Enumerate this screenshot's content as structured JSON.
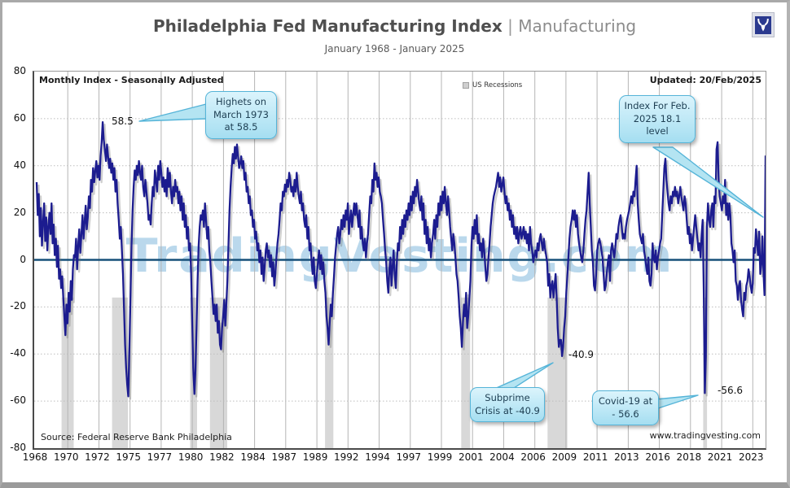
{
  "header": {
    "title": "Philadelphia Fed Manufacturing Index",
    "separator": "|",
    "subtitle_inline": "Manufacturing",
    "date_range": "January 1968 - January 2025"
  },
  "plot_notes": {
    "corner_note": "Monthly Index  - Seasonally Adjusted",
    "updated": "Updated: 20/Feb/2025",
    "legend_label": "US Recessions",
    "source": "Source: Federal Reserve Bank Philadelphia",
    "website": "www.tradingvesting.com",
    "watermark": "TradingVesting.com"
  },
  "icons": {
    "logo": "tradingvesting-bull-logo"
  },
  "chart_data": {
    "type": "line",
    "title": "Philadelphia Fed Manufacturing Index | Manufacturing",
    "subtitle": "January 1968 - January 2025",
    "xlabel": "",
    "ylabel": "",
    "ylim": [
      -80,
      80
    ],
    "y_ticks": [
      80,
      60,
      40,
      20,
      0,
      -20,
      -40,
      -60,
      -80
    ],
    "x_domain": [
      1968.0,
      2025.0
    ],
    "x_tick_labels": [
      "1968",
      "1970",
      "1972",
      "1975",
      "1977",
      "1980",
      "1982",
      "1984",
      "1987",
      "1989",
      "1992",
      "1994",
      "1997",
      "1999",
      "2001",
      "2004",
      "2006",
      "2009",
      "2011",
      "2013",
      "2016",
      "2018",
      "2021",
      "2023"
    ],
    "grid": true,
    "legend_position": "top-center",
    "series": [
      {
        "name": "Philadelphia Fed Manufacturing Index",
        "start": "1968-01",
        "frequency": "monthly",
        "values": [
          33,
          19,
          28,
          10,
          22,
          6,
          16,
          24,
          8,
          18,
          4,
          14,
          20,
          11,
          24,
          7,
          15,
          2,
          9,
          -3,
          6,
          -8,
          -4,
          -12,
          -7,
          -16,
          -24,
          -32,
          -19,
          -27,
          -14,
          -22,
          -9,
          -17,
          -4,
          2,
          1,
          9,
          -4,
          6,
          13,
          3,
          11,
          19,
          9,
          16,
          23,
          13,
          18,
          27,
          22,
          34,
          29,
          39,
          33,
          38,
          42,
          35,
          40,
          34,
          44,
          50,
          58.5,
          51,
          47,
          42,
          49,
          44,
          39,
          43,
          37,
          41,
          34,
          39,
          29,
          34,
          24,
          17,
          9,
          14,
          4,
          -6,
          -21,
          -36,
          -46,
          -53,
          -58,
          -39,
          -18,
          6,
          21,
          31,
          38,
          34,
          40,
          36,
          42,
          37,
          34,
          40,
          31,
          27,
          34,
          29,
          24,
          17,
          19,
          15,
          24,
          31,
          27,
          38,
          34,
          29,
          40,
          34,
          42,
          37,
          31,
          35,
          29,
          34,
          27,
          39,
          31,
          37,
          29,
          24,
          31,
          27,
          34,
          29,
          31,
          24,
          29,
          21,
          27,
          17,
          24,
          14,
          19,
          9,
          14,
          4,
          7,
          -6,
          -26,
          -46,
          -57,
          -47,
          -29,
          -9,
          6,
          14,
          19,
          17,
          21,
          14,
          24,
          17,
          9,
          14,
          4,
          -1,
          -9,
          -16,
          -23,
          -19,
          -26,
          -19,
          -31,
          -26,
          -36,
          -38,
          -29,
          -24,
          -17,
          -28,
          -19,
          -9,
          6,
          21,
          31,
          39,
          45,
          41,
          48,
          43,
          49,
          44,
          39,
          41,
          44,
          39,
          42,
          34,
          37,
          29,
          31,
          24,
          27,
          19,
          21,
          14,
          17,
          9,
          12,
          4,
          7,
          -1,
          4,
          -6,
          1,
          -9,
          -3,
          4,
          7,
          1,
          4,
          -3,
          2,
          -7,
          -1,
          -11,
          -6,
          1,
          7,
          11,
          17,
          24,
          21,
          29,
          27,
          32,
          29,
          34,
          31,
          37,
          34,
          29,
          31,
          27,
          34,
          29,
          37,
          31,
          27,
          24,
          29,
          21,
          24,
          17,
          14,
          19,
          9,
          14,
          4,
          7,
          -1,
          -6,
          1,
          -9,
          -12,
          -6,
          -1,
          4,
          -4,
          2,
          -6,
          -1,
          -9,
          -14,
          -24,
          -29,
          -36,
          -27,
          -19,
          -24,
          -14,
          -7,
          1,
          6,
          11,
          14,
          7,
          11,
          17,
          13,
          19,
          14,
          21,
          17,
          24,
          11,
          17,
          21,
          14,
          19,
          24,
          19,
          24,
          19,
          14,
          21,
          9,
          14,
          7,
          4,
          9,
          1,
          7,
          11,
          19,
          27,
          24,
          34,
          29,
          41,
          34,
          37,
          31,
          35,
          29,
          27,
          24,
          17,
          11,
          4,
          -1,
          -9,
          -14,
          -4,
          1,
          -11,
          -3,
          4,
          -6,
          -12,
          -1,
          7,
          4,
          14,
          9,
          17,
          11,
          19,
          14,
          21,
          17,
          24,
          19,
          27,
          21,
          29,
          24,
          31,
          27,
          34,
          29,
          24,
          21,
          27,
          17,
          24,
          11,
          17,
          7,
          14,
          4,
          9,
          1,
          7,
          11,
          17,
          9,
          19,
          14,
          24,
          19,
          27,
          21,
          29,
          24,
          31,
          24,
          19,
          27,
          21,
          14,
          9,
          4,
          11,
          7,
          1,
          -6,
          -9,
          -16,
          -24,
          -29,
          -37,
          -27,
          -19,
          -24,
          -14,
          -29,
          -24,
          -17,
          -9,
          6,
          14,
          9,
          17,
          11,
          19,
          7,
          11,
          4,
          7,
          1,
          9,
          4,
          -3,
          -9,
          -6,
          1,
          7,
          14,
          19,
          24,
          27,
          29,
          31,
          34,
          37,
          31,
          35,
          29,
          32,
          35,
          29,
          24,
          27,
          21,
          24,
          17,
          21,
          14,
          19,
          11,
          14,
          9,
          14,
          7,
          11,
          14,
          9,
          11,
          14,
          9,
          12,
          7,
          11,
          4,
          14,
          7,
          4,
          -1,
          2,
          4,
          1,
          7,
          4,
          9,
          11,
          7,
          4,
          9,
          5,
          2,
          -1,
          -11,
          -6,
          -16,
          -11,
          -9,
          -16,
          -11,
          -6,
          -16,
          -29,
          -37,
          -34,
          -34,
          -40.9,
          -37,
          -29,
          -24,
          -14,
          -7,
          1,
          9,
          14,
          17,
          21,
          17,
          21,
          14,
          19,
          11,
          7,
          4,
          1,
          -1,
          4,
          11,
          17,
          21,
          29,
          37,
          24,
          14,
          4,
          -1,
          -11,
          -13,
          -6,
          4,
          7,
          9,
          7,
          4,
          1,
          -6,
          -13,
          -11,
          -6,
          -1,
          2,
          -9,
          4,
          7,
          4,
          1,
          5,
          11,
          9,
          14,
          17,
          19,
          14,
          9,
          11,
          9,
          14,
          17,
          19,
          21,
          24,
          27,
          24,
          29,
          27,
          34,
          40,
          24,
          17,
          11,
          9,
          7,
          11,
          4,
          1,
          -3,
          -6,
          1,
          -9,
          -11,
          -6,
          7,
          1,
          -1,
          4,
          -4,
          1,
          4,
          7,
          9,
          19,
          29,
          39,
          43,
          34,
          29,
          24,
          21,
          27,
          24,
          29,
          27,
          31,
          27,
          29,
          24,
          27,
          31,
          27,
          24,
          21,
          27,
          24,
          17,
          11,
          14,
          7,
          11,
          4,
          9,
          14,
          19,
          14,
          9,
          4,
          7,
          1,
          11,
          17,
          -13,
          -56.6,
          -41,
          14,
          24,
          17,
          14,
          21,
          24,
          14,
          27,
          24,
          47,
          50,
          34,
          27,
          24,
          21,
          27,
          24,
          34,
          19,
          24,
          17,
          24,
          19,
          7,
          4,
          -1,
          4,
          -9,
          -11,
          -17,
          -11,
          -9,
          -17,
          -21,
          -24,
          -14,
          -17,
          -11,
          -9,
          -4,
          -7,
          -11,
          -14,
          -10,
          5,
          3,
          13,
          7,
          2,
          12,
          -6,
          -2,
          10,
          -5,
          -15,
          44.3
        ]
      }
    ],
    "recessions": [
      [
        1969.95,
        1970.9
      ],
      [
        1973.9,
        1975.15
      ],
      [
        1980.0,
        1980.55
      ],
      [
        1981.55,
        1982.9
      ],
      [
        1990.55,
        1991.2
      ],
      [
        2001.2,
        2001.9
      ],
      [
        2007.95,
        2009.5
      ],
      [
        2020.12,
        2020.42
      ]
    ],
    "recession_band_top": -16,
    "recession_band_bottom": -80,
    "callouts": {
      "highest": {
        "text": "Highets on March 1973 at 58.5"
      },
      "latest": {
        "text": "Index For Feb. 2025 18.1 level"
      },
      "subprime": {
        "text": "Subprime Crisis at -40.9"
      },
      "covid": {
        "text": "Covid-19 at - 56.6"
      }
    },
    "point_labels": {
      "high_1973": "58.5",
      "low_2009": "-40.9",
      "low_2020": "-56.6"
    },
    "colors": {
      "line": "#1c1c8f",
      "zero_line": "#17507a",
      "recession_band": "#d8d8d8",
      "gridline": "#b5b5b5",
      "watermark": "#a9cfe8",
      "callout_border": "#55b4d8",
      "callout_fill": "#bfe8f5"
    }
  }
}
